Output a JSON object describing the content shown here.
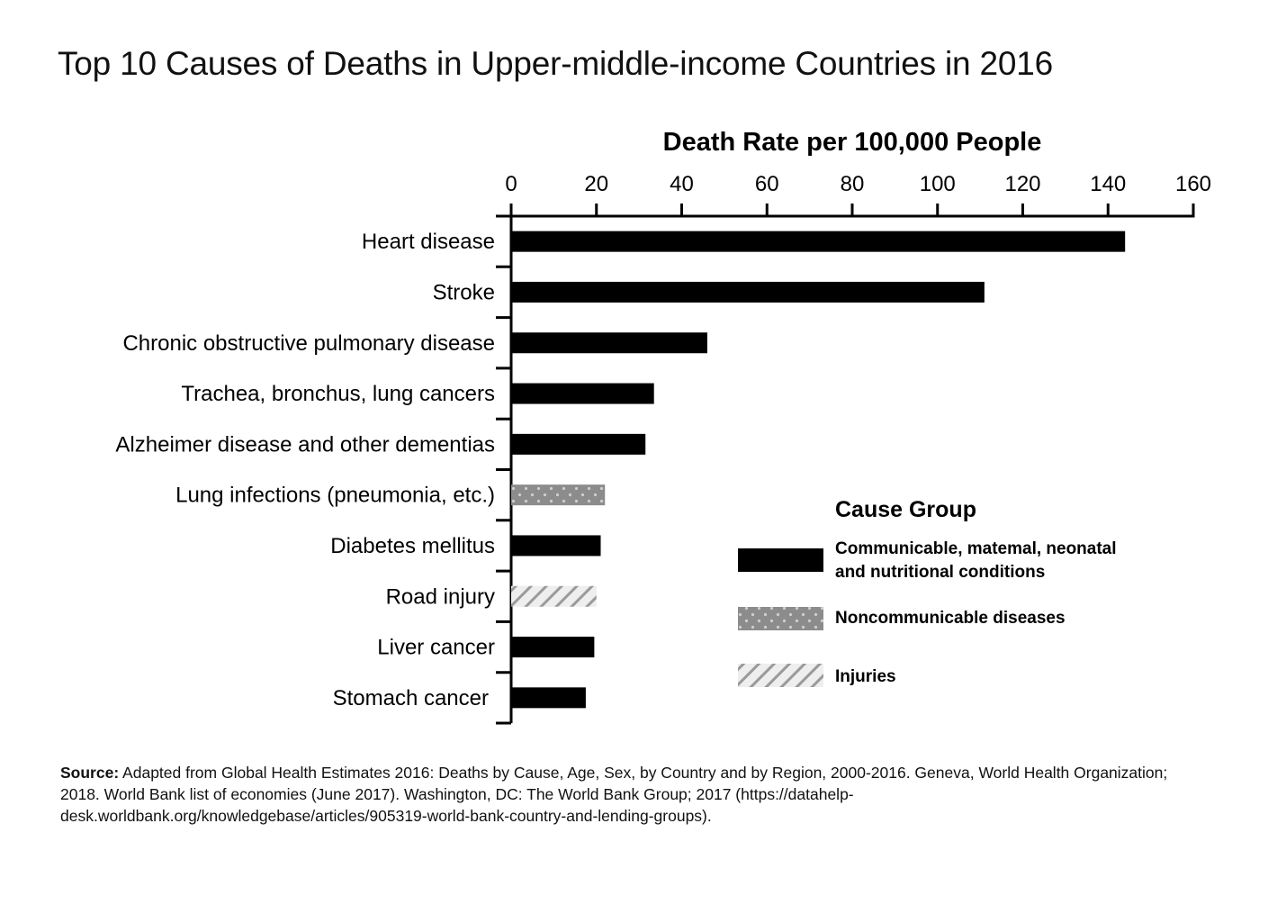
{
  "title": "Top 10 Causes of Deaths in Upper-middle-income Countries in 2016",
  "source": {
    "label": "Source:",
    "text": " Adapted from Global Health Estimates 2016: Deaths by Cause, Age, Sex, by Country and by Region, 2000-2016. Geneva, World Health Organization; 2018. World Bank list of economies (June 2017). Washington, DC: The World Bank Group; 2017 (https://datahelp-desk.worldbank.org/knowledgebase/articles/905319-world-bank-country-and-lending-groups)."
  },
  "chart_data": {
    "type": "bar",
    "orientation": "horizontal",
    "title": "Top 10 Causes of Deaths in Upper-middle-income Countries in 2016",
    "xlabel": "Death Rate per 100,000 People",
    "ylabel": "",
    "xlim": [
      0,
      160
    ],
    "ticks": [
      0,
      20,
      40,
      60,
      80,
      100,
      120,
      140,
      160
    ],
    "tick_labels": [
      "0",
      "20",
      "40",
      "60",
      "80",
      "100",
      "120",
      "140",
      "160"
    ],
    "axis_position": "top",
    "categories": [
      "Heart disease",
      "Stroke",
      "Chronic obstructive pulmonary disease",
      "Trachea, bronchus, lung cancers",
      "Alzheimer disease and other dementias",
      "Lung infections (pneumonia, etc.)",
      "Diabetes mellitus",
      "Road injury",
      "Liver cancer",
      "Stomach cancer"
    ],
    "values": [
      144,
      111,
      46,
      33.5,
      31.5,
      22,
      21,
      20,
      19.5,
      17.5
    ],
    "groups": [
      "Communicable, matemal, neonatal and nutritional conditions",
      "Communicable, matemal, neonatal and nutritional conditions",
      "Communicable, matemal, neonatal and nutritional conditions",
      "Communicable, matemal, neonatal and nutritional conditions",
      "Communicable, matemal, neonatal and nutritional conditions",
      "Noncommunicable diseases",
      "Communicable, matemal, neonatal and nutritional conditions",
      "Injuries",
      "Communicable, matemal, neonatal and nutritional conditions",
      "Communicable, matemal, neonatal and nutritional conditions"
    ],
    "legend": {
      "title": "Cause Group",
      "placement": "lower-right",
      "entries": [
        {
          "name": "Communicable, matemal, neonatal and nutritional conditions",
          "lines": [
            "Communicable, matemal, neonatal",
            "and nutritional conditions"
          ],
          "pattern": "solid"
        },
        {
          "name": "Noncommunicable diseases",
          "lines": [
            "Noncommunicable diseases"
          ],
          "pattern": "dots"
        },
        {
          "name": "Injuries",
          "lines": [
            "Injuries"
          ],
          "pattern": "hatch"
        }
      ]
    },
    "colors": {
      "solid": "#000000",
      "dots_bg": "#8c8c8c",
      "dots_fg": "#cfcfcf",
      "hatch_bg": "#e8e8e8",
      "hatch_fg": "#9a9a9a"
    }
  }
}
